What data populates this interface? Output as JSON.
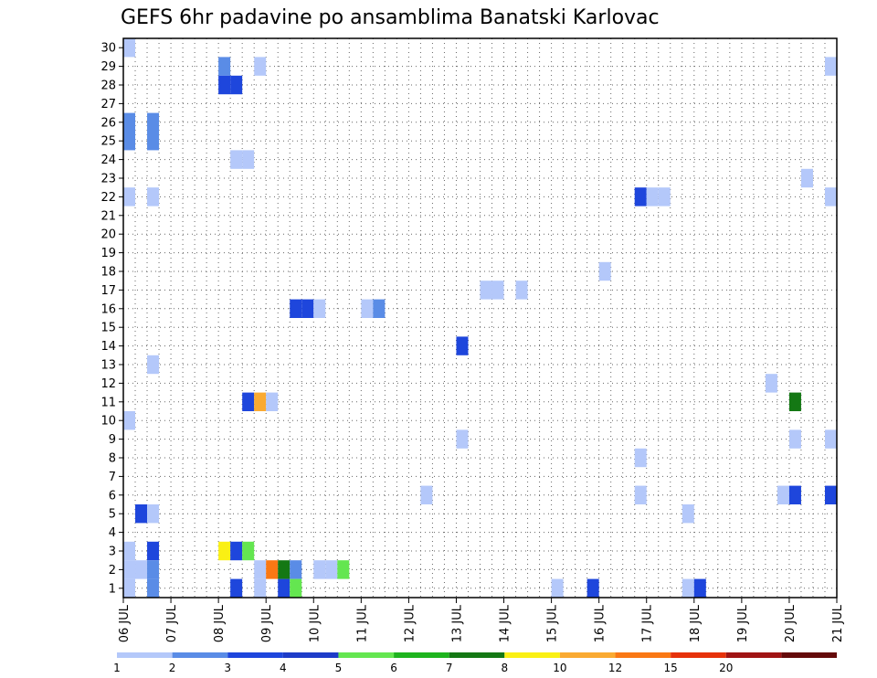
{
  "chart_data": {
    "type": "heatmap",
    "title": "GEFS 6hr padavine po ansamblima Banatski Karlovac",
    "xlabel": "",
    "ylabel": "",
    "x_ticks": [
      "06 JUL",
      "07 JUL",
      "08 JUL",
      "09 JUL",
      "10 JUL",
      "11 JUL",
      "12 JUL",
      "13 JUL",
      "14 JUL",
      "15 JUL",
      "16 JUL",
      "17 JUL",
      "18 JUL",
      "19 JUL",
      "20 JUL",
      "21 JUL"
    ],
    "y_ticks": [
      "1",
      "2",
      "3",
      "4",
      "5",
      "6",
      "7",
      "8",
      "9",
      "10",
      "11",
      "12",
      "13",
      "14",
      "15",
      "16",
      "17",
      "18",
      "19",
      "20",
      "21",
      "22",
      "23",
      "24",
      "25",
      "26",
      "27",
      "28",
      "29",
      "30"
    ],
    "x_unit": "6-hour step from 06 JUL 00 UTC",
    "xlim": [
      0,
      60
    ],
    "ylim": [
      0.5,
      30.5
    ],
    "grid": true,
    "colorbar": {
      "labels": [
        "1",
        "2",
        "3",
        "4",
        "5",
        "6",
        "7",
        "8",
        "10",
        "12",
        "15",
        "20"
      ],
      "colors": [
        "#b4c8fa",
        "#5a8ce6",
        "#1e46dc",
        "#1e3cc8",
        "#64e650",
        "#1eb41e",
        "#147814",
        "#faf014",
        "#faaa32",
        "#fa7814",
        "#e6320a",
        "#a01414",
        "#640a0a"
      ]
    },
    "cells": [
      [
        0.5,
        30,
        1
      ],
      [
        0.5,
        26,
        2
      ],
      [
        0.5,
        25,
        2
      ],
      [
        0.5,
        22,
        1
      ],
      [
        0.5,
        10,
        1
      ],
      [
        0.5,
        3,
        1
      ],
      [
        0.5,
        2,
        1
      ],
      [
        0.5,
        1,
        1
      ],
      [
        1.5,
        5,
        3
      ],
      [
        1.5,
        2,
        1
      ],
      [
        2.5,
        26,
        2
      ],
      [
        2.5,
        25,
        2
      ],
      [
        2.5,
        22,
        1
      ],
      [
        2.5,
        13,
        1
      ],
      [
        2.5,
        5,
        1
      ],
      [
        2.5,
        3,
        3
      ],
      [
        2.5,
        2,
        2
      ],
      [
        2.5,
        1,
        2
      ],
      [
        8.5,
        29,
        2
      ],
      [
        8.5,
        28,
        3
      ],
      [
        8.5,
        3,
        8
      ],
      [
        9.5,
        28,
        3
      ],
      [
        9.5,
        24,
        1
      ],
      [
        9.5,
        3,
        3
      ],
      [
        9.5,
        1,
        3
      ],
      [
        10.5,
        24,
        1
      ],
      [
        10.5,
        11,
        3
      ],
      [
        10.5,
        3,
        5
      ],
      [
        11.5,
        29,
        1
      ],
      [
        11.5,
        11,
        9
      ],
      [
        11.5,
        2,
        1
      ],
      [
        11.5,
        1,
        1
      ],
      [
        12.5,
        11,
        1
      ],
      [
        12.5,
        2,
        10
      ],
      [
        13.5,
        2,
        7
      ],
      [
        13.5,
        1,
        3
      ],
      [
        14.5,
        16,
        3
      ],
      [
        14.5,
        2,
        2
      ],
      [
        14.5,
        1,
        5
      ],
      [
        15.5,
        16,
        3
      ],
      [
        16.5,
        16,
        1
      ],
      [
        16.5,
        2,
        1
      ],
      [
        17.5,
        2,
        1
      ],
      [
        18.5,
        2,
        5
      ],
      [
        20.5,
        16,
        1
      ],
      [
        21.5,
        16,
        2
      ],
      [
        25.5,
        6,
        1
      ],
      [
        28.5,
        14,
        3
      ],
      [
        28.5,
        9,
        1
      ],
      [
        30.5,
        17,
        1
      ],
      [
        31.5,
        17,
        1
      ],
      [
        33.5,
        17,
        1
      ],
      [
        36.5,
        1,
        1
      ],
      [
        39.5,
        1,
        3
      ],
      [
        40.5,
        18,
        1
      ],
      [
        43.5,
        22,
        3
      ],
      [
        43.5,
        8,
        1
      ],
      [
        43.5,
        6,
        1
      ],
      [
        44.5,
        22,
        1
      ],
      [
        45.5,
        22,
        1
      ],
      [
        47.5,
        5,
        1
      ],
      [
        47.5,
        1,
        1
      ],
      [
        48.5,
        1,
        3
      ],
      [
        54.5,
        12,
        1
      ],
      [
        55.5,
        6,
        1
      ],
      [
        56.5,
        11,
        7
      ],
      [
        56.5,
        9,
        1
      ],
      [
        56.5,
        6,
        3
      ],
      [
        57.5,
        23,
        1
      ],
      [
        59.5,
        29,
        1
      ],
      [
        59.5,
        22,
        1
      ],
      [
        59.5,
        9,
        1
      ],
      [
        59.5,
        6,
        3
      ]
    ]
  }
}
